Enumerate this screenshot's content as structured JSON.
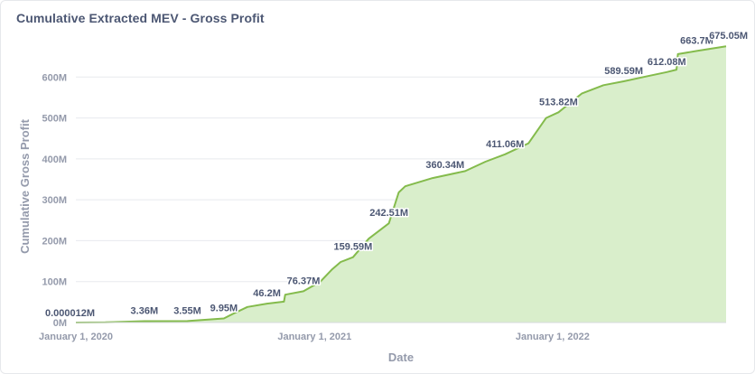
{
  "card": {
    "title": "Cumulative Extracted MEV - Gross Profit"
  },
  "chart_data": {
    "type": "area",
    "title": "Cumulative Extracted MEV - Gross Profit",
    "xlabel": "Date",
    "ylabel": "Cumulative Gross Profit",
    "ylim": [
      0,
      700
    ],
    "y_unit": "M",
    "y_ticks": [
      {
        "value": 0,
        "label": "0M"
      },
      {
        "value": 100,
        "label": "100M"
      },
      {
        "value": 200,
        "label": "200M"
      },
      {
        "value": 300,
        "label": "300M"
      },
      {
        "value": 400,
        "label": "400M"
      },
      {
        "value": 500,
        "label": "500M"
      },
      {
        "value": 600,
        "label": "600M"
      }
    ],
    "x_ticks": [
      {
        "value": "2020-01-01",
        "label": "January 1, 2020"
      },
      {
        "value": "2021-01-01",
        "label": "January 1, 2021"
      },
      {
        "value": "2022-01-01",
        "label": "January 1, 2022"
      }
    ],
    "xlim": [
      "2020-01-01",
      "2022-09-24"
    ],
    "grid": true,
    "colors": {
      "line": "#84bb4c",
      "fill": "#d9eecb",
      "grid": "#e8eaee"
    },
    "series": [
      {
        "points": [
          {
            "x": "2020-01-01",
            "y": 1.2e-05
          },
          {
            "x": "2020-02-15",
            "y": 0.5
          },
          {
            "x": "2020-04-15",
            "y": 3.36
          },
          {
            "x": "2020-06-20",
            "y": 3.55
          },
          {
            "x": "2020-08-15",
            "y": 9.95
          },
          {
            "x": "2020-08-30",
            "y": 22
          },
          {
            "x": "2020-09-20",
            "y": 38
          },
          {
            "x": "2020-10-20",
            "y": 46.2
          },
          {
            "x": "2020-11-15",
            "y": 51
          },
          {
            "x": "2020-11-17",
            "y": 68
          },
          {
            "x": "2020-12-15",
            "y": 76.37
          },
          {
            "x": "2021-01-10",
            "y": 100
          },
          {
            "x": "2021-01-28",
            "y": 130
          },
          {
            "x": "2021-02-10",
            "y": 148
          },
          {
            "x": "2021-03-01",
            "y": 159.59
          },
          {
            "x": "2021-03-25",
            "y": 205
          },
          {
            "x": "2021-04-25",
            "y": 242.51
          },
          {
            "x": "2021-05-10",
            "y": 318
          },
          {
            "x": "2021-05-20",
            "y": 333
          },
          {
            "x": "2021-07-01",
            "y": 353
          },
          {
            "x": "2021-08-20",
            "y": 370
          },
          {
            "x": "2021-09-20",
            "y": 393
          },
          {
            "x": "2021-10-20",
            "y": 411.06
          },
          {
            "x": "2021-11-25",
            "y": 438
          },
          {
            "x": "2021-12-22",
            "y": 500
          },
          {
            "x": "2022-01-10",
            "y": 513.82
          },
          {
            "x": "2022-02-15",
            "y": 560
          },
          {
            "x": "2022-03-20",
            "y": 580
          },
          {
            "x": "2022-04-20",
            "y": 589.59
          },
          {
            "x": "2022-05-20",
            "y": 600
          },
          {
            "x": "2022-06-25",
            "y": 612.08
          },
          {
            "x": "2022-07-10",
            "y": 618
          },
          {
            "x": "2022-07-12",
            "y": 656
          },
          {
            "x": "2022-08-10",
            "y": 663.7
          },
          {
            "x": "2022-09-24",
            "y": 675.05
          }
        ]
      }
    ],
    "data_labels": [
      {
        "x": "2020-01-01",
        "y": 1.2e-05,
        "text": "0.000012M"
      },
      {
        "x": "2020-04-15",
        "y": 3.36,
        "text": "3.36M"
      },
      {
        "x": "2020-06-20",
        "y": 3.55,
        "text": "3.55M"
      },
      {
        "x": "2020-08-15",
        "y": 9.95,
        "text": "9.95M"
      },
      {
        "x": "2020-10-20",
        "y": 46.2,
        "text": "46.2M"
      },
      {
        "x": "2020-12-15",
        "y": 76.37,
        "text": "76.37M"
      },
      {
        "x": "2021-03-01",
        "y": 159.59,
        "text": "159.59M"
      },
      {
        "x": "2021-04-25",
        "y": 242.51,
        "text": "242.51M"
      },
      {
        "x": "2021-07-20",
        "y": 360.34,
        "text": "360.34M"
      },
      {
        "x": "2021-10-20",
        "y": 411.06,
        "text": "411.06M"
      },
      {
        "x": "2022-01-10",
        "y": 513.82,
        "text": "513.82M"
      },
      {
        "x": "2022-04-20",
        "y": 589.59,
        "text": "589.59M"
      },
      {
        "x": "2022-06-25",
        "y": 612.08,
        "text": "612.08M"
      },
      {
        "x": "2022-08-10",
        "y": 663.7,
        "text": "663.7M"
      },
      {
        "x": "2022-09-24",
        "y": 675.05,
        "text": "675.05M"
      }
    ]
  }
}
